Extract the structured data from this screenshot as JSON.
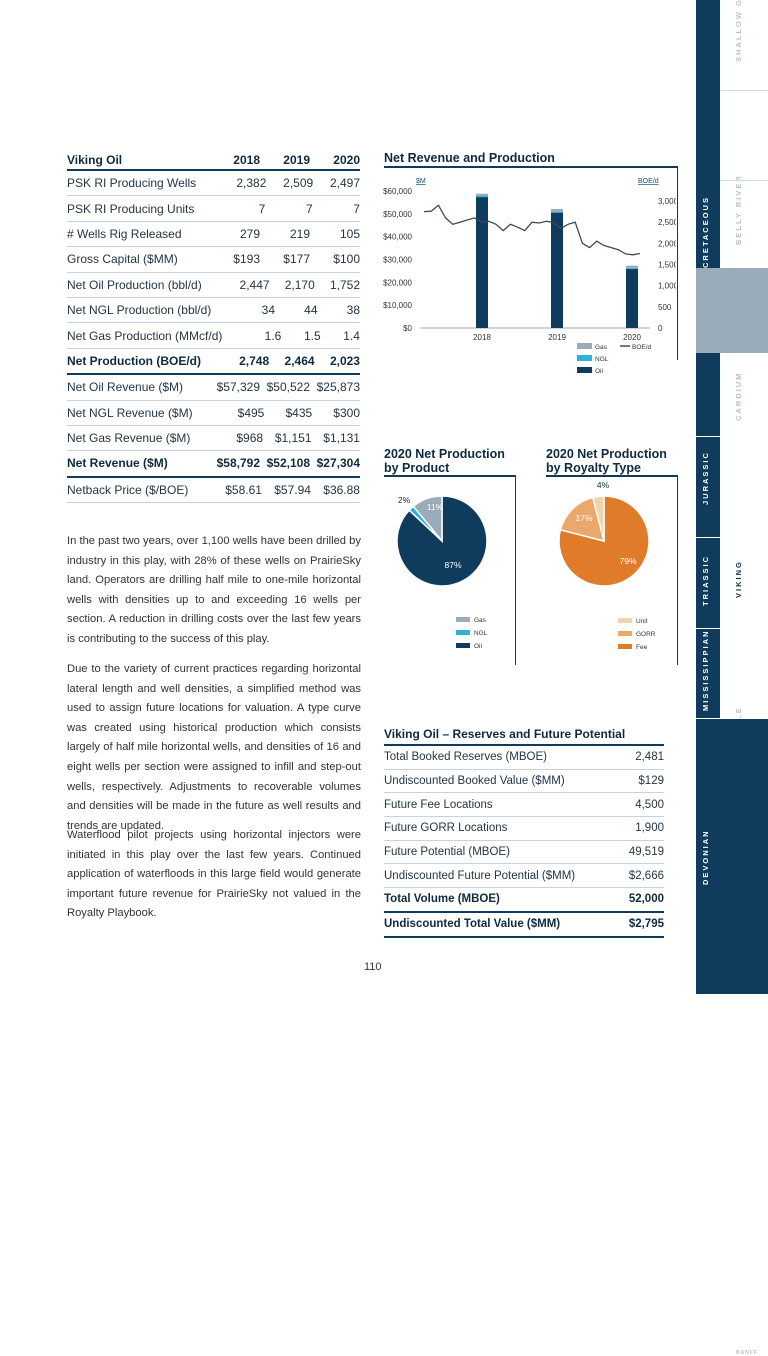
{
  "main_table": {
    "title": "Viking Oil",
    "years": [
      "2018",
      "2019",
      "2020"
    ],
    "rows": [
      {
        "label": "PSK RI Producing Wells",
        "values": [
          "2,382",
          "2,509",
          "2,497"
        ],
        "bold": false
      },
      {
        "label": "PSK RI Producing Units",
        "values": [
          "7",
          "7",
          "7"
        ],
        "bold": false
      },
      {
        "label": "# Wells Rig Released",
        "values": [
          "279",
          "219",
          "105"
        ],
        "bold": false
      },
      {
        "label": "Gross Capital ($MM)",
        "values": [
          "$193",
          "$177",
          "$100"
        ],
        "bold": false
      },
      {
        "label": "Net Oil Production (bbl/d)",
        "values": [
          "2,447",
          "2,170",
          "1,752"
        ],
        "bold": false
      },
      {
        "label": "Net NGL Production (bbl/d)",
        "values": [
          "34",
          "44",
          "38"
        ],
        "bold": false
      },
      {
        "label": "Net Gas Production (MMcf/d)",
        "values": [
          "1.6",
          "1.5",
          "1.4"
        ],
        "bold": false
      },
      {
        "label": "Net Production (BOE/d)",
        "values": [
          "2,748",
          "2,464",
          "2,023"
        ],
        "bold": true
      },
      {
        "label": "Net Oil Revenue ($M)",
        "values": [
          "$57,329",
          "$50,522",
          "$25,873"
        ],
        "bold": false
      },
      {
        "label": "Net NGL Revenue ($M)",
        "values": [
          "$495",
          "$435",
          "$300"
        ],
        "bold": false
      },
      {
        "label": "Net Gas Revenue ($M)",
        "values": [
          "$968",
          "$1,151",
          "$1,131"
        ],
        "bold": false
      },
      {
        "label": "Net Revenue ($M)",
        "values": [
          "$58,792",
          "$52,108",
          "$27,304"
        ],
        "bold": true
      },
      {
        "label": "Netback Price ($/BOE)",
        "values": [
          "$58.61",
          "$57.94",
          "$36.88"
        ],
        "bold": false
      }
    ]
  },
  "paragraphs": [
    "In the past two years, over 1,100 wells have been drilled by industry in this play, with 28% of these wells on PrairieSky land. Operators are drilling half mile to one-mile horizontal wells with densities up to and exceeding 16 wells per section. A reduction in drilling costs over the last few years is contributing to the success of this play.",
    "Due to the variety of current practices regarding horizontal lateral length and well densities, a simplified method was used to assign future locations for valuation. A type curve was created using historical production which consists largely of half mile horizontal wells, and densities of 16 and eight wells per section were assigned to infill and step-out wells, respectively. Adjustments to recoverable volumes and densities will be made in the future as well results and trends are updated.",
    "Waterflood pilot projects using horizontal injectors were initiated in this play over the last few years. Continued application of waterfloods in this large field would generate important future revenue for PrairieSky not valued in the Royalty Playbook."
  ],
  "chart_data": [
    {
      "type": "bar",
      "title": "Net Revenue and Production",
      "left_axis_unit": "$M",
      "right_axis_unit": "BOE/d",
      "categories": [
        "2018",
        "2019",
        "2020"
      ],
      "left_ticks": [
        "$60,000",
        "$50,000",
        "$40,000",
        "$30,000",
        "$20,000",
        "$10,000",
        "$0"
      ],
      "right_ticks": [
        "3,000",
        "2,500",
        "2,000",
        "1,500",
        "1,000",
        "500",
        "0"
      ],
      "ylim_left": [
        0,
        60000
      ],
      "ylim_right": [
        0,
        3000
      ],
      "series": [
        {
          "name": "Oil",
          "values": [
            57329,
            50522,
            25873
          ],
          "color": "#0f3b5c"
        },
        {
          "name": "NGL",
          "values": [
            495,
            435,
            300
          ],
          "color": "#2bb3d9"
        },
        {
          "name": "Gas",
          "values": [
            968,
            1151,
            1131
          ],
          "color": "#9aabba"
        }
      ],
      "line_series": {
        "name": "BOE/d",
        "color": "#3b4a5a",
        "values": [
          2750,
          2760,
          2900,
          2600,
          2450,
          2500,
          2550,
          2600,
          2500,
          2520,
          2450,
          2300,
          2450,
          2380,
          2300,
          2500,
          2480,
          2520,
          2500,
          2350,
          2450,
          2500,
          2000,
          1900,
          2050,
          1950,
          1900,
          1850,
          1750,
          1730,
          1760
        ]
      },
      "legend": [
        "Gas",
        "BOE/d",
        "NGL",
        "Oil"
      ]
    },
    {
      "type": "pie",
      "title": [
        "2020 Net Production",
        "by Product"
      ],
      "slices": [
        {
          "label": "Oil",
          "value": 87,
          "text": "87%",
          "color": "#0f3b5c"
        },
        {
          "label": "NGL",
          "value": 2,
          "text": "2%",
          "color": "#2bb3d9"
        },
        {
          "label": "Gas",
          "value": 11,
          "text": "11%",
          "color": "#9aabba"
        }
      ],
      "legend": [
        "Gas",
        "NGL",
        "Oil"
      ]
    },
    {
      "type": "pie",
      "title": [
        "2020 Net Production",
        "by Royalty Type"
      ],
      "slices": [
        {
          "label": "Fee",
          "value": 79,
          "text": "79%",
          "color": "#e07b2a"
        },
        {
          "label": "GORR",
          "value": 17,
          "text": "17%",
          "color": "#eba86c"
        },
        {
          "label": "Unit",
          "value": 4,
          "text": "4%",
          "color": "#f3d2b0"
        }
      ],
      "legend": [
        "Unit",
        "GORR",
        "Fee"
      ]
    }
  ],
  "reserves_table": {
    "title": "Viking Oil – Reserves and Future Potential",
    "rows": [
      {
        "label": "Total Booked Reserves (MBOE)",
        "value": "2,481",
        "bold": false
      },
      {
        "label": "Undiscounted Booked Value ($MM)",
        "value": "$129",
        "bold": false
      },
      {
        "label": "Future Fee Locations",
        "value": "4,500",
        "bold": false
      },
      {
        "label": "Future GORR Locations",
        "value": "1,900",
        "bold": false
      },
      {
        "label": "Future Potential (MBOE)",
        "value": "49,519",
        "bold": false
      },
      {
        "label": "Undiscounted Future Potential ($MM)",
        "value": "$2,666",
        "bold": false
      },
      {
        "label": "Total Volume (MBOE)",
        "value": "52,000",
        "bold": true
      },
      {
        "label": "Undiscounted Total Value ($MM)",
        "value": "$2,795",
        "bold": true
      }
    ]
  },
  "side_tabs": [
    {
      "label": "SHALLOW GAS",
      "group": "CRETACEOUS",
      "active": false
    },
    {
      "label": "BELLY RIVER",
      "group": "CRETACEOUS",
      "active": false
    },
    {
      "label": "CARDIUM",
      "group": "CRETACEOUS",
      "active": false
    },
    {
      "label": "VIKING",
      "group": "CRETACEOUS",
      "active": true
    },
    {
      "label": "MANNVILLE",
      "group": "CRETACEOUS",
      "active": false
    },
    {
      "label": "BANFF",
      "group": "MISSISSIPPIAN",
      "active": false
    }
  ],
  "side_groups": [
    "CRETACEOUS",
    "JURASSIC",
    "TRIASSIC",
    "MISSISSIPPIAN",
    "DEVONIAN"
  ],
  "page_number": "110",
  "colors": {
    "navy": "#0f3b5c",
    "active_tab": "#9aabba",
    "orange": "#e07b2a"
  }
}
